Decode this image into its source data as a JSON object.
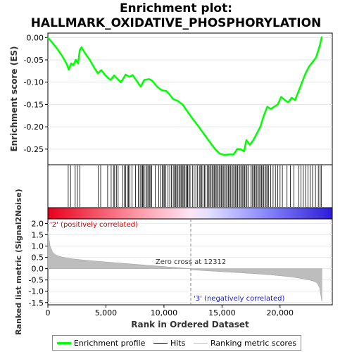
{
  "chart_data": {
    "type": "line",
    "title_line1": "Enrichment plot:",
    "title_line2": "HALLMARK_OXIDATIVE_PHOSPHORYLATION",
    "ylabel_top": "Enrichment score (ES)",
    "ylabel_bottom": "Ranked list metric (Signal2Noise)",
    "xlabel": "Rank in Ordered Dataset",
    "xlim": [
      0,
      24500
    ],
    "x_ticks": [
      0,
      5000,
      10000,
      15000,
      20000
    ],
    "x_tick_labels": [
      "0",
      "5,000",
      "10,000",
      "15,000",
      "20,000"
    ],
    "es_ylim": [
      -0.285,
      0.01
    ],
    "es_ticks": [
      0.0,
      -0.05,
      -0.1,
      -0.15,
      -0.2,
      -0.25
    ],
    "es_tick_labels": [
      "0.00",
      "-0.05",
      "-0.10",
      "-0.15",
      "-0.20",
      "-0.25"
    ],
    "metric_ylim": [
      -1.6,
      2.2
    ],
    "metric_ticks": [
      2.0,
      1.5,
      1.0,
      0.5,
      0.0,
      -0.5,
      -1.0,
      -1.5
    ],
    "metric_tick_labels": [
      "2.0",
      "1.5",
      "1.0",
      "0.5",
      "0.0",
      "-0.5",
      "-1.0",
      "-1.5"
    ],
    "zero_cross_label": "Zero cross at 12312",
    "zero_cross": 12312,
    "positive_label": "'2' (positively correlated)",
    "negative_label": "'3' (negatively correlated)",
    "es_curve": {
      "name": "Enrichment profile",
      "color": "#00ff00",
      "points": [
        [
          0,
          0.0
        ],
        [
          400,
          -0.012
        ],
        [
          800,
          -0.025
        ],
        [
          1200,
          -0.04
        ],
        [
          1600,
          -0.058
        ],
        [
          1800,
          -0.072
        ],
        [
          2000,
          -0.058
        ],
        [
          2200,
          -0.062
        ],
        [
          2400,
          -0.05
        ],
        [
          2600,
          -0.058
        ],
        [
          2750,
          -0.028
        ],
        [
          2900,
          -0.022
        ],
        [
          3200,
          -0.035
        ],
        [
          3600,
          -0.05
        ],
        [
          4000,
          -0.068
        ],
        [
          4300,
          -0.08
        ],
        [
          4600,
          -0.073
        ],
        [
          5000,
          -0.086
        ],
        [
          5400,
          -0.095
        ],
        [
          5700,
          -0.085
        ],
        [
          6000,
          -0.093
        ],
        [
          6300,
          -0.1
        ],
        [
          6700,
          -0.083
        ],
        [
          7000,
          -0.088
        ],
        [
          7300,
          -0.084
        ],
        [
          7600,
          -0.095
        ],
        [
          8000,
          -0.11
        ],
        [
          8300,
          -0.095
        ],
        [
          8700,
          -0.093
        ],
        [
          9000,
          -0.097
        ],
        [
          9400,
          -0.11
        ],
        [
          9800,
          -0.118
        ],
        [
          10200,
          -0.12
        ],
        [
          10500,
          -0.128
        ],
        [
          10800,
          -0.138
        ],
        [
          11200,
          -0.142
        ],
        [
          11600,
          -0.15
        ],
        [
          12000,
          -0.165
        ],
        [
          12500,
          -0.183
        ],
        [
          13000,
          -0.2
        ],
        [
          13500,
          -0.218
        ],
        [
          14000,
          -0.236
        ],
        [
          14400,
          -0.25
        ],
        [
          14800,
          -0.26
        ],
        [
          15200,
          -0.263
        ],
        [
          15600,
          -0.262
        ],
        [
          16000,
          -0.262
        ],
        [
          16300,
          -0.25
        ],
        [
          16600,
          -0.25
        ],
        [
          16900,
          -0.255
        ],
        [
          17100,
          -0.23
        ],
        [
          17400,
          -0.24
        ],
        [
          17700,
          -0.23
        ],
        [
          18000,
          -0.215
        ],
        [
          18300,
          -0.2
        ],
        [
          18600,
          -0.175
        ],
        [
          18900,
          -0.155
        ],
        [
          19200,
          -0.16
        ],
        [
          19500,
          -0.155
        ],
        [
          19800,
          -0.15
        ],
        [
          20100,
          -0.133
        ],
        [
          20400,
          -0.14
        ],
        [
          20700,
          -0.145
        ],
        [
          21000,
          -0.135
        ],
        [
          21300,
          -0.14
        ],
        [
          21600,
          -0.12
        ],
        [
          21900,
          -0.1
        ],
        [
          22200,
          -0.08
        ],
        [
          22500,
          -0.065
        ],
        [
          22800,
          -0.055
        ],
        [
          23100,
          -0.045
        ],
        [
          23400,
          -0.02
        ],
        [
          23600,
          0.002
        ]
      ]
    },
    "hits": [
      1750,
      1950,
      2350,
      2550,
      2750,
      4350,
      4550,
      5150,
      5450,
      5650,
      5750,
      5900,
      6050,
      6450,
      6600,
      6700,
      6850,
      6950,
      7050,
      7250,
      7550,
      7800,
      7950,
      8050,
      8150,
      8200,
      8300,
      8450,
      8550,
      8650,
      8750,
      8850,
      8950,
      9250,
      9550,
      9700,
      9850,
      9950,
      10050,
      10150,
      10350,
      10500,
      10650,
      10800,
      10900,
      11000,
      11100,
      11200,
      11300,
      11400,
      11500,
      11600,
      11700,
      11800,
      11900,
      12000,
      12050,
      12150,
      12250,
      12450,
      12600,
      12750,
      12900,
      13050,
      13150,
      13250,
      13350,
      13500,
      13600,
      13750,
      13850,
      13950,
      14050,
      14150,
      14250,
      14350,
      14450,
      14550,
      14650,
      14750,
      14850,
      14950,
      15050,
      15150,
      15250,
      15350,
      15450,
      15550,
      15650,
      15750,
      15850,
      15950,
      16050,
      16150,
      16250,
      16350,
      16450,
      16550,
      16650,
      16750,
      16850,
      16950,
      17050,
      17150,
      17250,
      17500,
      17600,
      17700,
      17800,
      17900,
      18000,
      18100,
      18200,
      18300,
      18400,
      18500,
      18600,
      18700,
      18800,
      18900,
      19000,
      19200,
      19400,
      19600,
      19800,
      20000,
      20200,
      20600,
      20900,
      21200,
      21600,
      21800,
      22000,
      22200,
      22400,
      22600,
      22800,
      23050,
      23300,
      23450,
      23550
    ],
    "legend": [
      {
        "label": "Enrichment profile",
        "color": "#00ff00"
      },
      {
        "label": "Hits",
        "color": "#000000"
      },
      {
        "label": "Ranking metric scores",
        "color": "#c0c0c0"
      }
    ]
  }
}
